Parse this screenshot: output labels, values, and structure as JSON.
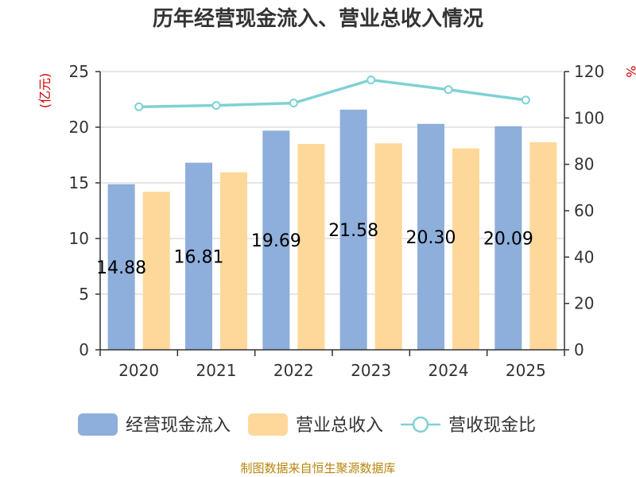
{
  "chart_data": {
    "type": "bar",
    "title": "历年经营现金流入、营业总收入情况",
    "categories": [
      "2020",
      "2021",
      "2022",
      "2023",
      "2024",
      "2025"
    ],
    "left_axis": {
      "unit": "(亿元)",
      "range": [
        0,
        25
      ],
      "ticks": [
        "0",
        "5",
        "10",
        "15",
        "20",
        "25"
      ]
    },
    "right_axis": {
      "unit": "%",
      "range": [
        0,
        120
      ],
      "ticks": [
        "0",
        "20",
        "40",
        "60",
        "80",
        "100",
        "120"
      ]
    },
    "grid": true,
    "legend_position": "bottom",
    "series": [
      {
        "name": "经营现金流入",
        "kind": "bar",
        "axis": "left",
        "color": "#8eaedb",
        "values": [
          14.88,
          16.81,
          19.69,
          21.58,
          20.3,
          20.09
        ],
        "labels": [
          "14.88",
          "16.81",
          "19.69",
          "21.58",
          "20.30",
          "20.09"
        ]
      },
      {
        "name": "营业总收入",
        "kind": "bar",
        "axis": "left",
        "color": "#fdd89a",
        "values": [
          14.2,
          15.95,
          18.5,
          18.55,
          18.1,
          18.65
        ]
      },
      {
        "name": "营收现金比",
        "kind": "line",
        "axis": "right",
        "color": "#7fd1d4",
        "values": [
          104.8,
          105.4,
          106.4,
          116.4,
          112.2,
          107.7
        ]
      }
    ]
  },
  "footer": {
    "source": "制图数据来自恒生聚源数据库"
  }
}
